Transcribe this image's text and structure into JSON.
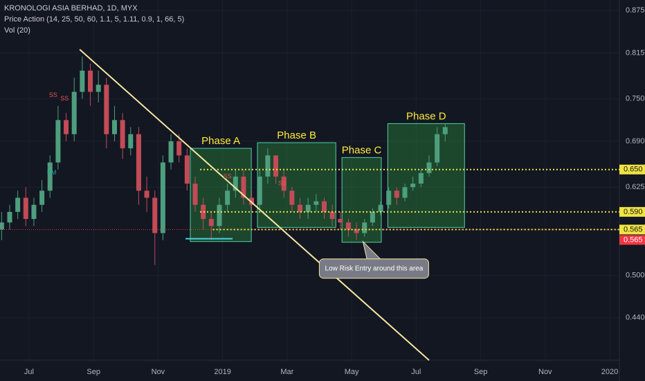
{
  "chart_data": {
    "type": "candlestick",
    "title": "KRONOLOGI ASIA BERHAD, 1D, MYX",
    "subtitle": "Price Action (14, 25, 50, 60, 1.1, 5, 1.11, 0.9, 1, 66, 5)",
    "indicator": "Vol (20)",
    "x": [
      -0.85,
      -0.6,
      -0.35,
      -0.1,
      0.15,
      0.4,
      0.65,
      0.9,
      1.15,
      1.4,
      1.65,
      1.9,
      2.15,
      2.4,
      2.65,
      2.9,
      3.15,
      3.4,
      3.65,
      3.9,
      4.15,
      4.4,
      4.65,
      4.9,
      5.15,
      5.4,
      5.65,
      5.9,
      6.15,
      6.4,
      6.65,
      6.9,
      7.15,
      7.4,
      7.65,
      7.9,
      8.15,
      8.4,
      8.65,
      8.9,
      9.15,
      9.4,
      9.65,
      9.9,
      10.15,
      10.4,
      10.65,
      10.9,
      11.15,
      11.4,
      11.65,
      11.9,
      12.15,
      12.4,
      12.65,
      12.9
    ],
    "open": [
      0.565,
      0.575,
      0.59,
      0.61,
      0.58,
      0.6,
      0.62,
      0.66,
      0.72,
      0.7,
      0.76,
      0.79,
      0.76,
      0.77,
      0.7,
      0.72,
      0.68,
      0.7,
      0.62,
      0.61,
      0.56,
      0.66,
      0.69,
      0.67,
      0.63,
      0.6,
      0.58,
      0.57,
      0.6,
      0.62,
      0.64,
      0.61,
      0.6,
      0.64,
      0.67,
      0.64,
      0.62,
      0.6,
      0.59,
      0.6,
      0.605,
      0.59,
      0.58,
      0.575,
      0.565,
      0.56,
      0.575,
      0.59,
      0.6,
      0.62,
      0.61,
      0.625,
      0.63,
      0.645,
      0.66,
      0.7
    ],
    "high": [
      0.59,
      0.6,
      0.62,
      0.625,
      0.61,
      0.635,
      0.67,
      0.74,
      0.73,
      0.78,
      0.81,
      0.8,
      0.79,
      0.78,
      0.74,
      0.73,
      0.71,
      0.71,
      0.64,
      0.62,
      0.67,
      0.7,
      0.7,
      0.68,
      0.64,
      0.61,
      0.59,
      0.61,
      0.63,
      0.65,
      0.65,
      0.62,
      0.65,
      0.68,
      0.67,
      0.65,
      0.625,
      0.61,
      0.61,
      0.615,
      0.61,
      0.6,
      0.59,
      0.58,
      0.575,
      0.58,
      0.595,
      0.605,
      0.625,
      0.625,
      0.63,
      0.64,
      0.65,
      0.67,
      0.71,
      0.715
    ],
    "low": [
      0.55,
      0.565,
      0.58,
      0.57,
      0.57,
      0.59,
      0.61,
      0.65,
      0.69,
      0.69,
      0.75,
      0.74,
      0.745,
      0.68,
      0.69,
      0.665,
      0.67,
      0.6,
      0.59,
      0.515,
      0.55,
      0.65,
      0.66,
      0.62,
      0.59,
      0.565,
      0.55,
      0.56,
      0.59,
      0.61,
      0.6,
      0.59,
      0.595,
      0.63,
      0.63,
      0.61,
      0.59,
      0.58,
      0.58,
      0.59,
      0.58,
      0.57,
      0.565,
      0.555,
      0.55,
      0.555,
      0.57,
      0.585,
      0.595,
      0.6,
      0.605,
      0.62,
      0.625,
      0.64,
      0.655,
      0.69
    ],
    "close": [
      0.575,
      0.59,
      0.61,
      0.58,
      0.6,
      0.62,
      0.66,
      0.72,
      0.7,
      0.76,
      0.79,
      0.76,
      0.77,
      0.7,
      0.72,
      0.68,
      0.7,
      0.62,
      0.61,
      0.56,
      0.66,
      0.69,
      0.67,
      0.63,
      0.6,
      0.58,
      0.57,
      0.6,
      0.62,
      0.64,
      0.61,
      0.6,
      0.64,
      0.67,
      0.64,
      0.62,
      0.6,
      0.59,
      0.6,
      0.605,
      0.59,
      0.58,
      0.575,
      0.565,
      0.56,
      0.575,
      0.59,
      0.6,
      0.62,
      0.61,
      0.625,
      0.63,
      0.645,
      0.66,
      0.7,
      0.71
    ],
    "up_color": "#4e9e7d",
    "down_color": "#c24b57",
    "xlim": [
      -0.9,
      18.3
    ],
    "xticks": [
      {
        "value": 0,
        "label": "Jul"
      },
      {
        "value": 2,
        "label": "Sep"
      },
      {
        "value": 4,
        "label": "Nov"
      },
      {
        "value": 6,
        "label": "2019"
      },
      {
        "value": 8,
        "label": "Mar"
      },
      {
        "value": 10,
        "label": "May"
      },
      {
        "value": 12,
        "label": "Jul"
      },
      {
        "value": 14,
        "label": "Sep"
      },
      {
        "value": 16,
        "label": "Nov"
      },
      {
        "value": 18,
        "label": "2020"
      }
    ],
    "ylim": [
      0.38,
      0.89
    ],
    "yticks": [
      0.875,
      0.815,
      {
        "value": 0.75,
        "label": "0.750"
      },
      {
        "value": 0.69,
        "label": "0.690"
      },
      0.625,
      {
        "value": 0.5,
        "label": "0.500"
      },
      {
        "value": 0.44,
        "label": "0.440"
      }
    ],
    "grid": true,
    "levels": [
      {
        "value": 0.65,
        "label": "0.650",
        "x0": 5.3
      },
      {
        "value": 0.59,
        "label": "0.590",
        "x0": 5.3
      },
      {
        "value": 0.565,
        "label": "0.565",
        "x0": 5.7
      }
    ],
    "level_color": "#f0e442",
    "current_price": {
      "value": 0.565,
      "color": "#f23645"
    },
    "phases": [
      {
        "label": "Phase A",
        "x": [
          5.0,
          6.89
        ],
        "y": [
          0.548,
          0.68
        ]
      },
      {
        "label": "Phase B",
        "x": [
          7.08,
          9.51
        ],
        "y": [
          0.568,
          0.688
        ]
      },
      {
        "label": "Phase C",
        "x": [
          9.7,
          10.92
        ],
        "y": [
          0.547,
          0.667
        ]
      },
      {
        "label": "Phase D",
        "x": [
          11.12,
          13.5
        ],
        "y": [
          0.568,
          0.715
        ]
      }
    ],
    "trendline": {
      "x": [
        1.57,
        12.4
      ],
      "y": [
        0.82,
        0.38
      ]
    },
    "support": {
      "x": [
        4.85,
        6.31
      ],
      "y": 0.552
    },
    "markers": [
      {
        "label": "SS",
        "x": 0.75,
        "y": 0.755,
        "color": "#ef5350"
      },
      {
        "label": "SS",
        "x": 1.1,
        "y": 0.75,
        "color": "#ef5350"
      },
      {
        "label": "BM",
        "x": 0.7,
        "y": 0.645,
        "color": "#26a69a"
      },
      {
        "label": "SS",
        "x": 6.15,
        "y": 0.64,
        "color": "#ef5350"
      },
      {
        "label": "SS",
        "x": 7.85,
        "y": 0.63,
        "color": "#ef5350"
      }
    ],
    "callout": {
      "label": "Low Risk Entry around this area",
      "x": 10.35,
      "y": 0.548
    }
  }
}
